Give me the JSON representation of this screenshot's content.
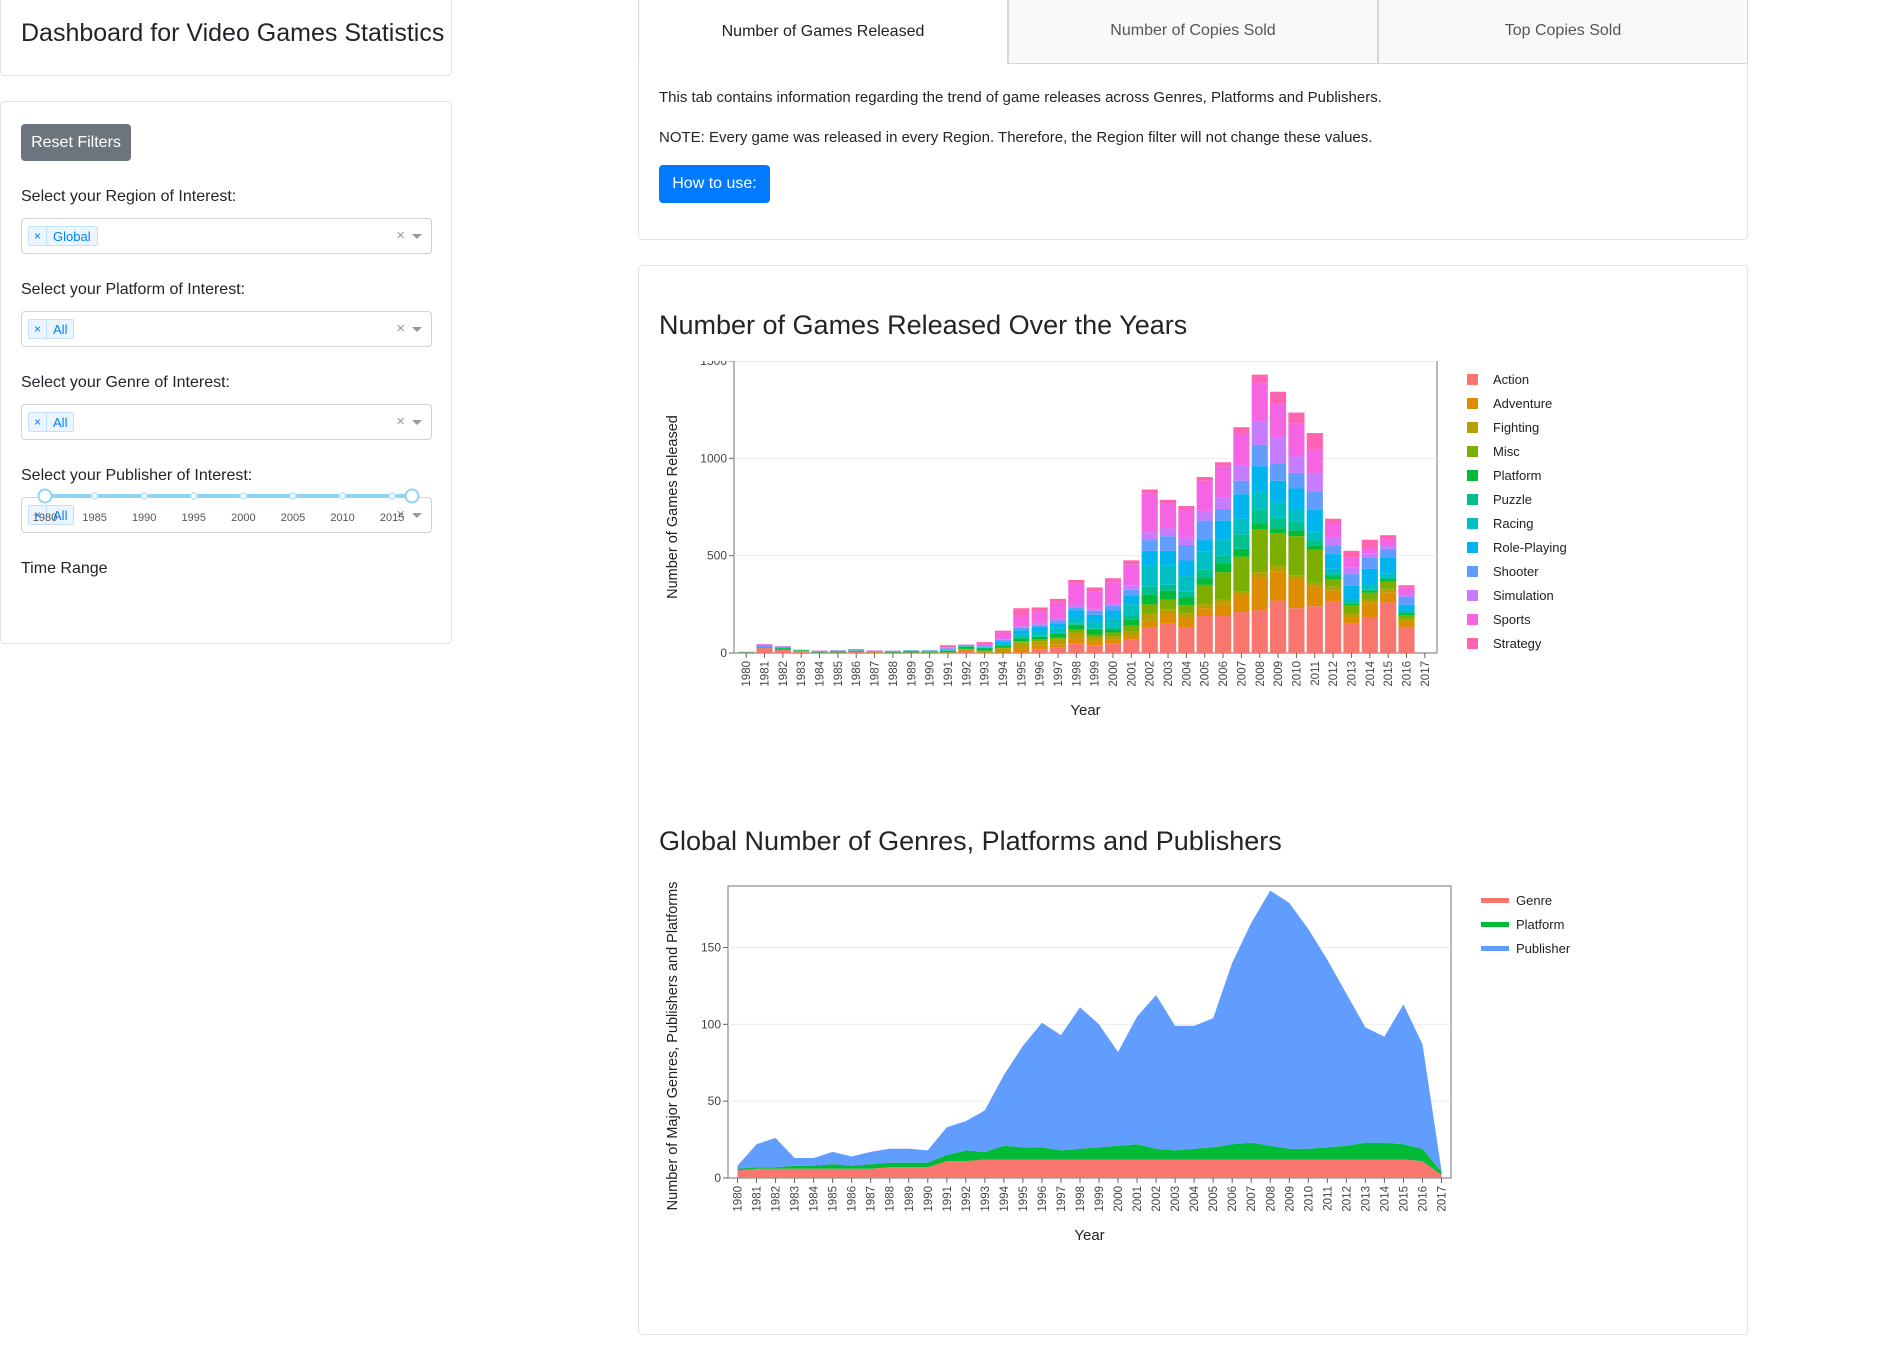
{
  "app": {
    "title": "Dashboard for Video Games Statistics"
  },
  "filters": {
    "reset_label": "Reset Filters",
    "region": {
      "label": "Select your Region of Interest:",
      "value": "Global"
    },
    "platform": {
      "label": "Select your Platform of Interest:",
      "value": "All"
    },
    "genre": {
      "label": "Select your Genre of Interest:",
      "value": "All"
    },
    "publisher": {
      "label": "Select your Publisher of Interest:",
      "value": "All"
    },
    "chip_remove": "×",
    "clear_glyph": "×",
    "time_range": {
      "label": "Time Range",
      "marks": [
        "1980",
        "1985",
        "1990",
        "1995",
        "2000",
        "2005",
        "2010",
        "2015"
      ],
      "selected": [
        1980,
        2017
      ]
    }
  },
  "tabs": [
    {
      "label": "Number of Games Released",
      "active": true
    },
    {
      "label": "Number of Copies Sold",
      "active": false
    },
    {
      "label": "Top Copies Sold",
      "active": false
    }
  ],
  "tab_content": {
    "intro": "This tab contains information regarding the trend of game releases across Genres, Platforms and Publishers.",
    "note": "NOTE: Every game was released in every Region. Therefore, the Region filter will not change these values.",
    "how_to_label": "How to use:"
  },
  "chart_data": [
    {
      "type": "bar",
      "stacked": true,
      "title": "Number of Games Released Over the Years",
      "xlabel": "Year",
      "ylabel": "Number of Games Released",
      "ylim": [
        0,
        1500
      ],
      "yticks": [
        0,
        500,
        1000,
        1500
      ],
      "legend_position": "right",
      "categories": [
        "1980",
        "1981",
        "1982",
        "1983",
        "1984",
        "1985",
        "1986",
        "1987",
        "1988",
        "1989",
        "1990",
        "1991",
        "1992",
        "1993",
        "1994",
        "1995",
        "1996",
        "1997",
        "1998",
        "1999",
        "2000",
        "2001",
        "2002",
        "2003",
        "2004",
        "2005",
        "2006",
        "2007",
        "2008",
        "2009",
        "2010",
        "2011",
        "2012",
        "2013",
        "2014",
        "2015",
        "2016",
        "2017"
      ],
      "series": [
        {
          "name": "Action",
          "color": "#F8766D",
          "values": [
            1,
            25,
            18,
            7,
            1,
            2,
            6,
            2,
            2,
            2,
            1,
            1,
            5,
            0,
            1,
            3,
            20,
            30,
            50,
            40,
            50,
            70,
            130,
            150,
            130,
            190,
            190,
            210,
            220,
            270,
            230,
            240,
            265,
            150,
            185,
            260,
            130,
            1
          ]
        },
        {
          "name": "Adventure",
          "color": "#DE8C00",
          "values": [
            0,
            0,
            0,
            1,
            0,
            0,
            0,
            1,
            0,
            0,
            1,
            2,
            10,
            4,
            4,
            20,
            20,
            15,
            25,
            20,
            20,
            20,
            35,
            50,
            50,
            40,
            60,
            85,
            170,
            150,
            150,
            100,
            55,
            30,
            70,
            50,
            30,
            0
          ]
        },
        {
          "name": "Fighting",
          "color": "#B79F00",
          "values": [
            1,
            0,
            0,
            0,
            0,
            1,
            0,
            2,
            0,
            0,
            0,
            0,
            4,
            7,
            20,
            30,
            20,
            25,
            30,
            20,
            15,
            20,
            35,
            25,
            25,
            20,
            25,
            20,
            25,
            25,
            20,
            20,
            20,
            20,
            20,
            20,
            15,
            0
          ]
        },
        {
          "name": "Misc",
          "color": "#7CAE00",
          "values": [
            0,
            0,
            0,
            1,
            1,
            0,
            0,
            0,
            0,
            1,
            1,
            1,
            2,
            1,
            3,
            8,
            10,
            10,
            15,
            15,
            20,
            30,
            50,
            50,
            40,
            100,
            140,
            180,
            220,
            170,
            200,
            170,
            40,
            45,
            35,
            40,
            20,
            0
          ]
        },
        {
          "name": "Platform",
          "color": "#00BA38",
          "values": [
            2,
            3,
            5,
            5,
            1,
            4,
            6,
            2,
            4,
            5,
            4,
            7,
            11,
            11,
            10,
            14,
            13,
            18,
            25,
            26,
            18,
            30,
            50,
            45,
            40,
            35,
            45,
            40,
            30,
            25,
            30,
            20,
            13,
            10,
            12,
            10,
            8,
            0
          ]
        },
        {
          "name": "Puzzle",
          "color": "#00C08B",
          "values": [
            0,
            2,
            3,
            1,
            3,
            4,
            0,
            0,
            3,
            4,
            2,
            3,
            3,
            4,
            3,
            5,
            5,
            5,
            8,
            6,
            10,
            20,
            40,
            30,
            30,
            45,
            40,
            75,
            70,
            55,
            45,
            30,
            15,
            5,
            5,
            10,
            5,
            0
          ]
        },
        {
          "name": "Racing",
          "color": "#00BFC4",
          "values": [
            0,
            1,
            2,
            0,
            2,
            0,
            1,
            0,
            1,
            0,
            2,
            2,
            1,
            2,
            8,
            17,
            25,
            27,
            27,
            30,
            45,
            60,
            110,
            100,
            80,
            90,
            80,
            80,
            95,
            80,
            60,
            45,
            25,
            15,
            25,
            20,
            10,
            0
          ]
        },
        {
          "name": "Role-Playing",
          "color": "#00B4F0",
          "values": [
            0,
            0,
            0,
            0,
            0,
            1,
            1,
            2,
            1,
            1,
            2,
            4,
            4,
            4,
            8,
            20,
            22,
            22,
            40,
            40,
            40,
            45,
            75,
            75,
            80,
            60,
            100,
            125,
            130,
            110,
            110,
            110,
            75,
            70,
            80,
            80,
            30,
            1
          ]
        },
        {
          "name": "Shooter",
          "color": "#619CFF",
          "values": [
            2,
            10,
            5,
            1,
            3,
            1,
            4,
            2,
            1,
            1,
            1,
            4,
            2,
            2,
            11,
            12,
            10,
            15,
            15,
            20,
            25,
            30,
            55,
            75,
            80,
            100,
            60,
            70,
            110,
            90,
            80,
            95,
            45,
            60,
            60,
            45,
            40,
            0
          ]
        },
        {
          "name": "Simulation",
          "color": "#C77CFF",
          "values": [
            0,
            1,
            0,
            0,
            0,
            1,
            0,
            1,
            0,
            0,
            0,
            3,
            0,
            1,
            4,
            8,
            10,
            10,
            14,
            11,
            14,
            23,
            40,
            40,
            40,
            50,
            60,
            80,
            120,
            130,
            85,
            95,
            40,
            35,
            20,
            20,
            15,
            0
          ]
        },
        {
          "name": "Sports",
          "color": "#F564E3",
          "values": [
            1,
            4,
            2,
            1,
            2,
            1,
            2,
            2,
            1,
            0,
            1,
            3,
            2,
            10,
            33,
            58,
            59,
            81,
            106,
            87,
            107,
            108,
            200,
            127,
            140,
            155,
            160,
            160,
            200,
            175,
            170,
            123,
            70,
            50,
            30,
            30,
            35,
            0
          ]
        },
        {
          "name": "Strategy",
          "color": "#FF64B0",
          "values": [
            0,
            0,
            0,
            0,
            0,
            0,
            0,
            0,
            0,
            0,
            0,
            10,
            0,
            10,
            10,
            35,
            20,
            20,
            20,
            22,
            20,
            20,
            20,
            20,
            20,
            19,
            20,
            35,
            40,
            62,
            55,
            82,
            27,
            35,
            40,
            20,
            10,
            1
          ]
        }
      ]
    },
    {
      "type": "area",
      "stacked": true,
      "title": "Global Number of Genres, Platforms and Publishers",
      "xlabel": "Year",
      "ylabel": "Number of Major Genres, Publishers and Platforms",
      "ylim": [
        0,
        190
      ],
      "yticks": [
        0,
        50,
        100,
        150
      ],
      "legend_position": "right",
      "x": [
        "1980",
        "1981",
        "1982",
        "1983",
        "1984",
        "1985",
        "1986",
        "1987",
        "1988",
        "1989",
        "1990",
        "1991",
        "1992",
        "1993",
        "1994",
        "1995",
        "1996",
        "1997",
        "1998",
        "1999",
        "2000",
        "2001",
        "2002",
        "2003",
        "2004",
        "2005",
        "2006",
        "2007",
        "2008",
        "2009",
        "2010",
        "2011",
        "2012",
        "2013",
        "2014",
        "2015",
        "2016",
        "2017"
      ],
      "series": [
        {
          "name": "Genre",
          "color": "#F8766D",
          "values": [
            5,
            6,
            6,
            6,
            6,
            6,
            6,
            6,
            7,
            7,
            7,
            11,
            11,
            12,
            12,
            12,
            12,
            12,
            12,
            12,
            12,
            12,
            12,
            12,
            12,
            12,
            12,
            12,
            12,
            12,
            12,
            12,
            12,
            12,
            12,
            12,
            11,
            2
          ]
        },
        {
          "name": "Platform",
          "color": "#00BA38",
          "values": [
            1,
            1,
            1,
            2,
            2,
            3,
            2,
            3,
            3,
            3,
            3,
            4,
            7,
            5,
            9,
            8,
            8,
            6,
            7,
            8,
            9,
            10,
            7,
            6,
            7,
            8,
            10,
            11,
            9,
            7,
            7,
            8,
            9,
            11,
            11,
            10,
            8,
            2
          ]
        },
        {
          "name": "Publisher",
          "color": "#619CFF",
          "values": [
            2,
            15,
            19,
            5,
            5,
            8,
            6,
            8,
            9,
            9,
            8,
            18,
            19,
            27,
            46,
            66,
            81,
            75,
            92,
            80,
            61,
            83,
            100,
            81,
            80,
            84,
            118,
            143,
            166,
            160,
            143,
            122,
            99,
            75,
            69,
            91,
            68,
            1
          ]
        }
      ]
    }
  ]
}
